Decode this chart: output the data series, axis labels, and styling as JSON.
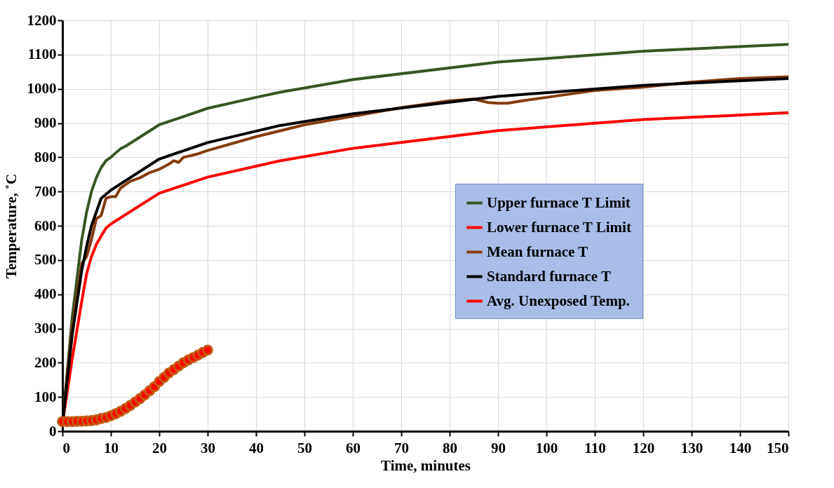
{
  "chart_data": {
    "type": "line",
    "xlabel": "Time, minutes",
    "ylabel": "Temperature, ˚C",
    "xlim": [
      0,
      150
    ],
    "ylim": [
      0,
      1200
    ],
    "xticks": [
      0,
      10,
      20,
      30,
      40,
      50,
      60,
      70,
      80,
      90,
      100,
      110,
      120,
      130,
      140,
      150
    ],
    "yticks": [
      0,
      100,
      200,
      300,
      400,
      500,
      600,
      700,
      800,
      900,
      1000,
      1100,
      1200
    ],
    "grid": true,
    "legend": "right",
    "line_style": "solid",
    "series": [
      {
        "name": "Upper furnace T Limit",
        "color": "#375623",
        "x": [
          0,
          2,
          4,
          5,
          6,
          7,
          8,
          9,
          10,
          12,
          13,
          20,
          30,
          40,
          45,
          60,
          90,
          120,
          150
        ],
        "values": [
          20,
          330,
          560,
          640,
          700,
          740,
          770,
          790,
          800,
          825,
          832,
          895,
          943,
          975,
          990,
          1027,
          1078,
          1110,
          1130
        ]
      },
      {
        "name": "Lower furnace T Limit",
        "color": "#ff0000",
        "x": [
          0,
          2,
          4,
          5,
          6,
          7,
          8,
          9,
          10,
          20,
          30,
          45,
          60,
          90,
          120,
          150
        ],
        "values": [
          20,
          210,
          380,
          460,
          510,
          545,
          570,
          593,
          605,
          695,
          742,
          790,
          826,
          878,
          910,
          930
        ]
      },
      {
        "name": "Mean  furnace T",
        "color": "#843c0c",
        "x": [
          0,
          2,
          4,
          5,
          6,
          7,
          8,
          9,
          10,
          11,
          12,
          14,
          16,
          18,
          20,
          22,
          23,
          24,
          25,
          28,
          30,
          40,
          50,
          60,
          70,
          80,
          85,
          88,
          90,
          92,
          95,
          100,
          110,
          120,
          130,
          140,
          150
        ],
        "values": [
          25,
          300,
          490,
          510,
          560,
          620,
          630,
          680,
          685,
          685,
          710,
          730,
          740,
          755,
          765,
          780,
          790,
          785,
          800,
          810,
          820,
          860,
          895,
          920,
          945,
          965,
          970,
          960,
          958,
          958,
          965,
          975,
          995,
          1005,
          1020,
          1030,
          1035
        ]
      },
      {
        "name": "Standard  furnace T",
        "color": "#000000",
        "x": [
          0,
          2,
          4,
          5,
          6,
          8,
          10,
          20,
          30,
          45,
          60,
          90,
          120,
          150
        ],
        "values": [
          20,
          280,
          470,
          540,
          600,
          680,
          704,
          795,
          843,
          893,
          927,
          978,
          1010,
          1030
        ]
      },
      {
        "name": "Avg. Unexposed Temp.",
        "color": "#ff0000",
        "type": "scatter",
        "x": [
          0,
          1,
          2,
          3,
          4,
          5,
          6,
          7,
          8,
          9,
          10,
          11,
          12,
          13,
          14,
          15,
          16,
          17,
          18,
          19,
          20,
          21,
          22,
          23,
          24,
          25,
          26,
          27,
          28,
          29,
          30
        ],
        "values": [
          28,
          28,
          28,
          29,
          29,
          30,
          31,
          33,
          37,
          40,
          45,
          51,
          58,
          66,
          75,
          85,
          95,
          106,
          118,
          130,
          145,
          157,
          170,
          180,
          190,
          200,
          208,
          215,
          222,
          230,
          237
        ]
      }
    ]
  }
}
